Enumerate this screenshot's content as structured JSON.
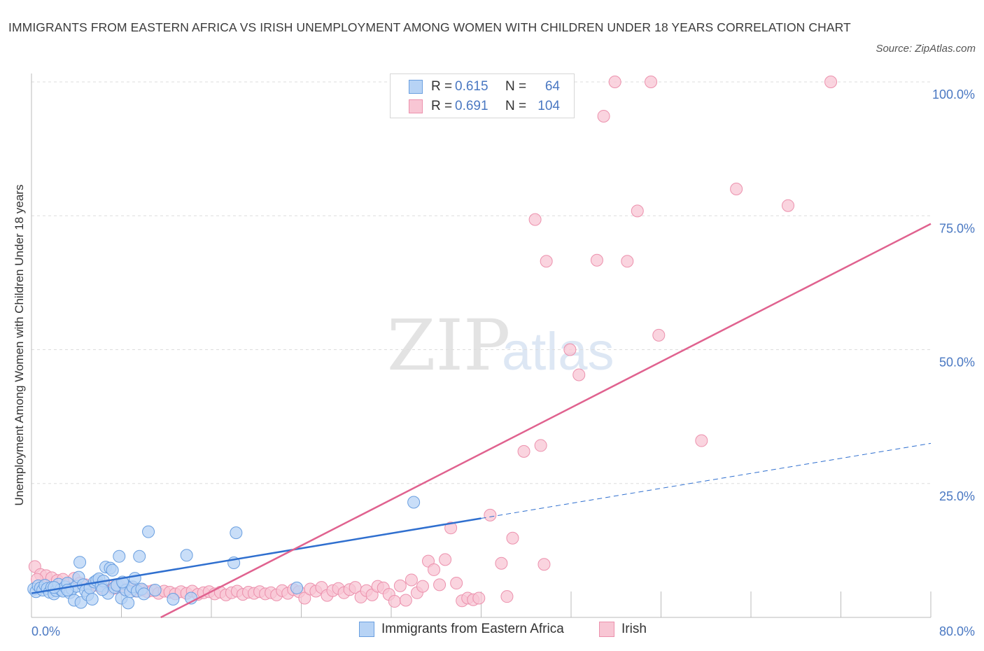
{
  "header": {
    "title": "IMMIGRANTS FROM EASTERN AFRICA VS IRISH UNEMPLOYMENT AMONG WOMEN WITH CHILDREN UNDER 18 YEARS CORRELATION CHART",
    "source": "Source: ZipAtlas.com"
  },
  "watermark": {
    "zip": "ZIP",
    "atlas": "atlas"
  },
  "legend": {
    "series1": {
      "r_label": "R =",
      "r_value": "0.615",
      "n_label": "N =",
      "n_value": "64"
    },
    "series2": {
      "r_label": "R =",
      "r_value": "0.691",
      "n_label": "N =",
      "n_value": "104"
    }
  },
  "colors": {
    "series1_fill": "#b7d3f5",
    "series1_stroke": "#6a9fe0",
    "series1_line": "#2f6fcf",
    "series2_fill": "#f8c6d4",
    "series2_stroke": "#ec91ad",
    "series2_line": "#e0628f",
    "tick_text": "#4a78c2",
    "grid": "#dddddd"
  },
  "chart_data": {
    "type": "scatter",
    "title": "IMMIGRANTS FROM EASTERN AFRICA VS IRISH UNEMPLOYMENT AMONG WOMEN WITH CHILDREN UNDER 18 YEARS CORRELATION CHART",
    "xlabel": "",
    "ylabel": "Unemployment Among Women with Children Under 18 years",
    "xlim": [
      0,
      80
    ],
    "ylim": [
      0,
      100
    ],
    "x_tick_labels": [
      "0.0%",
      "80.0%"
    ],
    "y_ticks": [
      25,
      50,
      75,
      100
    ],
    "y_tick_labels": [
      "25.0%",
      "50.0%",
      "75.0%",
      "100.0%"
    ],
    "grid": true,
    "legend_position": "top-center and bottom",
    "series": [
      {
        "name": "Immigrants from Eastern Africa",
        "R": 0.615,
        "N": 64,
        "trend": {
          "x": [
            0,
            40
          ],
          "y": [
            4.5,
            18.5
          ],
          "dashed_to": [
            80,
            32.5
          ]
        },
        "points": [
          [
            0.2,
            5.3
          ],
          [
            0.4,
            4.8
          ],
          [
            0.6,
            5.9
          ],
          [
            0.8,
            5.5
          ],
          [
            1.0,
            5.1
          ],
          [
            1.2,
            6.0
          ],
          [
            1.4,
            5.4
          ],
          [
            1.6,
            4.7
          ],
          [
            1.8,
            5.6
          ],
          [
            2.0,
            4.4
          ],
          [
            2.2,
            5.0
          ],
          [
            2.4,
            6.2
          ],
          [
            2.6,
            5.2
          ],
          [
            2.8,
            4.9
          ],
          [
            3.0,
            5.7
          ],
          [
            3.2,
            6.4
          ],
          [
            3.4,
            4.6
          ],
          [
            3.6,
            5.3
          ],
          [
            3.8,
            3.2
          ],
          [
            4.0,
            5.8
          ],
          [
            4.2,
            7.5
          ],
          [
            4.4,
            2.8
          ],
          [
            4.6,
            6.1
          ],
          [
            4.8,
            5.0
          ],
          [
            5.0,
            4.2
          ],
          [
            5.2,
            5.5
          ],
          [
            5.4,
            3.4
          ],
          [
            5.6,
            6.6
          ],
          [
            5.8,
            6.9
          ],
          [
            6.0,
            7.2
          ],
          [
            6.2,
            5.9
          ],
          [
            6.4,
            6.8
          ],
          [
            6.6,
            9.4
          ],
          [
            6.8,
            4.5
          ],
          [
            7.0,
            9.2
          ],
          [
            7.2,
            8.8
          ],
          [
            7.4,
            5.6
          ],
          [
            7.6,
            6.0
          ],
          [
            7.8,
            11.4
          ],
          [
            8.0,
            3.6
          ],
          [
            8.2,
            6.3
          ],
          [
            8.4,
            5.1
          ],
          [
            8.6,
            2.7
          ],
          [
            8.8,
            4.8
          ],
          [
            9.0,
            5.7
          ],
          [
            9.2,
            7.3
          ],
          [
            9.4,
            4.9
          ],
          [
            9.6,
            11.4
          ],
          [
            9.8,
            5.3
          ],
          [
            10.0,
            4.4
          ],
          [
            10.4,
            16.0
          ],
          [
            11.0,
            5.1
          ],
          [
            12.6,
            3.4
          ],
          [
            13.8,
            11.6
          ],
          [
            14.2,
            3.6
          ],
          [
            18.0,
            10.2
          ],
          [
            18.2,
            15.8
          ],
          [
            23.6,
            5.5
          ],
          [
            34.0,
            21.5
          ],
          [
            4.3,
            10.3
          ],
          [
            2.0,
            5.6
          ],
          [
            3.2,
            5.1
          ],
          [
            6.3,
            5.2
          ],
          [
            8.1,
            6.6
          ]
        ]
      },
      {
        "name": "Irish",
        "R": 0.691,
        "N": 104,
        "trend": {
          "x": [
            11.5,
            80
          ],
          "y": [
            0,
            73.5
          ]
        },
        "points": [
          [
            0.3,
            9.5
          ],
          [
            0.8,
            8.0
          ],
          [
            1.3,
            7.8
          ],
          [
            1.8,
            7.4
          ],
          [
            2.3,
            6.9
          ],
          [
            2.8,
            7.1
          ],
          [
            3.3,
            6.2
          ],
          [
            3.8,
            7.3
          ],
          [
            4.3,
            6.4
          ],
          [
            4.8,
            6.1
          ],
          [
            5.3,
            5.8
          ],
          [
            5.8,
            6.0
          ],
          [
            6.3,
            5.5
          ],
          [
            6.8,
            5.9
          ],
          [
            7.3,
            5.4
          ],
          [
            7.8,
            6.0
          ],
          [
            8.3,
            5.2
          ],
          [
            8.8,
            5.6
          ],
          [
            9.3,
            4.9
          ],
          [
            9.8,
            5.1
          ],
          [
            10.3,
            4.8
          ],
          [
            10.8,
            5.0
          ],
          [
            11.3,
            4.5
          ],
          [
            11.8,
            4.9
          ],
          [
            12.3,
            4.7
          ],
          [
            12.8,
            4.4
          ],
          [
            13.3,
            4.8
          ],
          [
            13.8,
            4.5
          ],
          [
            14.3,
            4.9
          ],
          [
            14.8,
            4.3
          ],
          [
            15.3,
            4.6
          ],
          [
            15.8,
            4.8
          ],
          [
            16.3,
            4.4
          ],
          [
            16.8,
            4.7
          ],
          [
            17.3,
            4.2
          ],
          [
            17.8,
            4.6
          ],
          [
            18.3,
            4.9
          ],
          [
            18.8,
            4.3
          ],
          [
            19.3,
            4.7
          ],
          [
            19.8,
            4.5
          ],
          [
            20.3,
            4.8
          ],
          [
            20.8,
            4.4
          ],
          [
            21.3,
            4.6
          ],
          [
            21.8,
            4.2
          ],
          [
            22.3,
            5.0
          ],
          [
            22.8,
            4.5
          ],
          [
            23.3,
            5.2
          ],
          [
            23.8,
            4.8
          ],
          [
            24.3,
            3.6
          ],
          [
            24.8,
            5.3
          ],
          [
            25.3,
            4.9
          ],
          [
            25.8,
            5.6
          ],
          [
            26.3,
            4.1
          ],
          [
            26.8,
            5.0
          ],
          [
            27.3,
            5.4
          ],
          [
            27.8,
            4.6
          ],
          [
            28.3,
            5.2
          ],
          [
            28.8,
            5.6
          ],
          [
            29.3,
            3.8
          ],
          [
            29.8,
            5.0
          ],
          [
            30.3,
            4.2
          ],
          [
            30.8,
            5.8
          ],
          [
            31.3,
            5.5
          ],
          [
            31.8,
            4.3
          ],
          [
            32.3,
            3.0
          ],
          [
            32.8,
            5.9
          ],
          [
            33.3,
            3.2
          ],
          [
            33.8,
            7.0
          ],
          [
            34.3,
            4.6
          ],
          [
            34.8,
            5.8
          ],
          [
            35.3,
            10.5
          ],
          [
            35.8,
            8.9
          ],
          [
            36.3,
            6.1
          ],
          [
            36.8,
            10.8
          ],
          [
            37.3,
            16.7
          ],
          [
            37.8,
            6.4
          ],
          [
            38.3,
            3.1
          ],
          [
            38.8,
            3.6
          ],
          [
            39.3,
            3.3
          ],
          [
            39.8,
            3.6
          ],
          [
            40.8,
            19.1
          ],
          [
            41.8,
            10.1
          ],
          [
            42.8,
            14.8
          ],
          [
            43.8,
            31.0
          ],
          [
            44.8,
            74.3
          ],
          [
            45.6,
            9.9
          ],
          [
            45.3,
            32.1
          ],
          [
            45.8,
            66.5
          ],
          [
            46.0,
            100.0
          ],
          [
            47.9,
            50.0
          ],
          [
            48.7,
            45.3
          ],
          [
            50.3,
            66.7
          ],
          [
            50.9,
            93.6
          ],
          [
            51.9,
            100.0
          ],
          [
            53.0,
            66.5
          ],
          [
            53.9,
            75.9
          ],
          [
            55.1,
            100.0
          ],
          [
            55.8,
            52.7
          ],
          [
            59.6,
            33.0
          ],
          [
            62.7,
            80.0
          ],
          [
            67.3,
            76.9
          ],
          [
            71.1,
            100.0
          ],
          [
            42.3,
            3.9
          ],
          [
            0.5,
            7.1
          ]
        ]
      }
    ]
  },
  "bottom_legend": {
    "series1_label": "Immigrants from Eastern Africa",
    "series2_label": "Irish"
  }
}
